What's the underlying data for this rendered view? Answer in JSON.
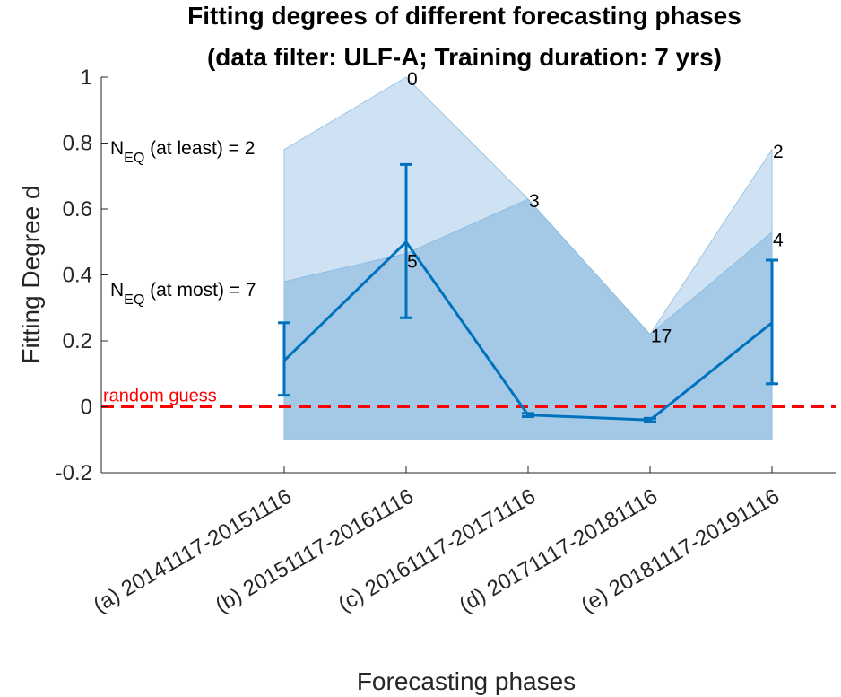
{
  "chart_data": {
    "type": "line",
    "title": [
      "Fitting degrees of different forecasting phases",
      "(data filter: ULF-A; Training duration: 7 yrs)"
    ],
    "xlabel": "Forecasting phases",
    "ylabel": "Fitting Degree d",
    "categories": [
      "(a) 20141117-20151116",
      "(b) 20151117-20161116",
      "(c) 20161117-20171116",
      "(d) 20171117-20181116",
      "(e) 20181117-20191116"
    ],
    "ylim": [
      -0.2,
      1
    ],
    "yticks": [
      "-0.2",
      "0",
      "0.2",
      "0.4",
      "0.6",
      "0.8",
      "1"
    ],
    "grid": false,
    "series": [
      {
        "values": [
          0.14,
          0.5,
          -0.025,
          -0.04,
          0.255
        ],
        "error_lower": [
          0.035,
          0.27,
          -0.03,
          -0.045,
          0.07
        ],
        "error_upper": [
          0.255,
          0.735,
          -0.02,
          -0.035,
          0.445
        ]
      }
    ],
    "bands": [
      {
        "lower": -0.1,
        "upper": [
          0.78,
          1.0,
          0.63,
          0.22,
          0.78
        ]
      },
      {
        "lower": -0.1,
        "upper": [
          0.38,
          0.465,
          0.63,
          0.22,
          0.53
        ]
      }
    ],
    "upper_band_labels": [
      "",
      "0",
      "3",
      "17",
      "2"
    ],
    "lower_band_labels": [
      "",
      "5",
      "",
      "",
      "4"
    ],
    "neq_at_least": {
      "base": "N",
      "sub": "EQ",
      "rest": " (at least) = 2"
    },
    "neq_at_most": {
      "base": "N",
      "sub": "EQ",
      "rest": " (at most) = 7"
    },
    "reference_line": {
      "value": 0,
      "label": "random guess",
      "color": "#ff0000"
    },
    "colors": {
      "line": "#0072bd",
      "outer_band": "#cfe2f3",
      "inner_band": "#a3c9e6"
    }
  }
}
